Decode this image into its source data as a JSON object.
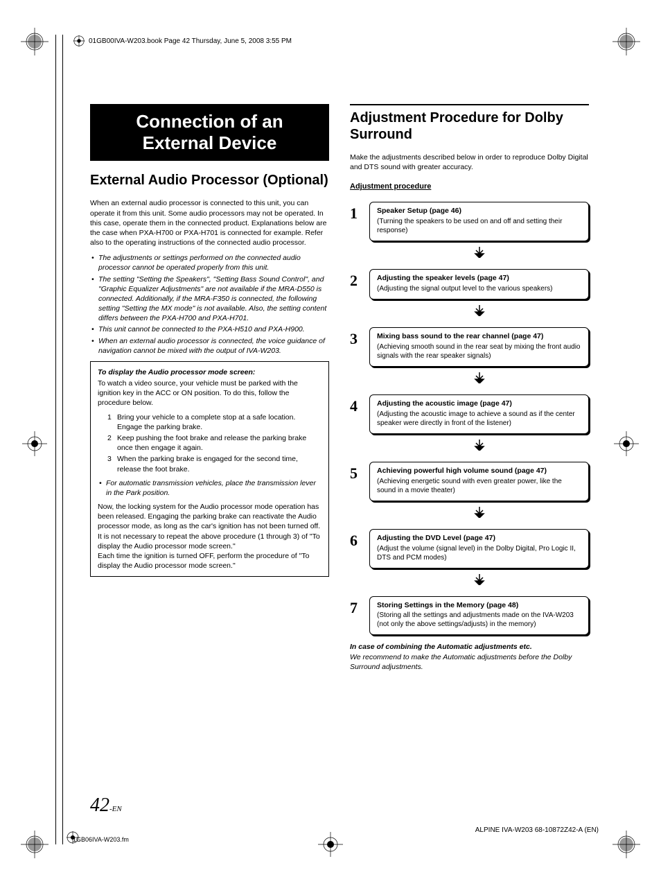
{
  "header": {
    "text": "01GB00IVA-W203.book  Page 42  Thursday, June 5, 2008  3:55 PM"
  },
  "left": {
    "banner_line1": "Connection of an",
    "banner_line2": "External Device",
    "section_title": "External Audio Processor (Optional)",
    "intro": "When an external audio processor is connected to this unit, you can operate it from this unit.  Some audio processors may not be operated. In this case, operate them in the connected product.  Explanations below are the case when PXA-H700 or PXA-H701 is connected for example. Refer also to the operating instructions of the connected audio processor.",
    "bullets": [
      "The adjustments or settings performed on the connected audio processor cannot be operated properly from this unit.",
      "The setting \"Setting the Speakers\", \"Setting Bass Sound Control\", and \"Graphic Equalizer Adjustments\" are not available if the MRA-D550 is connected. Additionally, if the MRA-F350 is connected, the following setting \"Setting the MX mode\" is not available. Also, the setting content differs between the PXA-H700 and PXA-H701.",
      "This unit cannot be connected to the PXA-H510 and PXA-H900.",
      "When an external audio processor is connected, the voice guidance of navigation cannot be mixed with the output of IVA-W203."
    ],
    "proc": {
      "heading": "To display the Audio processor mode screen:",
      "lead": "To watch a video source, your vehicle must be parked with the ignition key in the ACC or ON position. To do this, follow the procedure below.",
      "items": [
        "Bring your vehicle to a complete stop at a safe location. Engage the parking brake.",
        "Keep pushing the foot brake and release the parking brake once then engage it again.",
        "When the parking brake is engaged for the second time, release the foot brake."
      ],
      "sub_bullet": "For automatic transmission vehicles, place the transmission lever in the Park position.",
      "body2": "Now, the locking system for the Audio processor mode operation has been released. Engaging the parking brake can reactivate the Audio processor mode, as long as the car's ignition has not been turned off.  It is not necessary to repeat the above procedure (1 through 3) of \"To display the Audio processor mode screen.\"",
      "body3": "Each time the ignition is turned OFF, perform the procedure of \"To display the Audio processor mode screen.\""
    }
  },
  "right": {
    "section_title": "Adjustment Procedure for Dolby Surround",
    "intro": "Make the adjustments described below in order to reproduce Dolby Digital and DTS sound with greater accuracy.",
    "sub_heading": "Adjustment procedure",
    "steps": [
      {
        "n": "1",
        "title": "Speaker Setup (page 46)",
        "desc": "(Turning the speakers to be used on and off and setting their response)"
      },
      {
        "n": "2",
        "title": "Adjusting the speaker levels (page 47)",
        "desc": "(Adjusting the signal output level to the various speakers)"
      },
      {
        "n": "3",
        "title": "Mixing bass sound to the rear channel (page 47)",
        "desc": "(Achieving smooth sound in the rear seat by mixing the front audio signals with the rear speaker signals)"
      },
      {
        "n": "4",
        "title": "Adjusting the acoustic image (page 47)",
        "desc": "(Adjusting the acoustic image to achieve a sound as if the center speaker were directly in front of the listener)"
      },
      {
        "n": "5",
        "title": "Achieving powerful high volume sound (page 47)",
        "desc": "(Achieving energetic sound with even greater power, like the sound in a movie theater)"
      },
      {
        "n": "6",
        "title": "Adjusting the DVD Level (page 47)",
        "desc": "(Adjust the volume (signal level) in the Dolby Digital, Pro Logic II, DTS and PCM modes)"
      },
      {
        "n": "7",
        "title": "Storing Settings in the Memory (page 48)",
        "desc": "(Storing all the settings and adjustments made on the IVA-W203 (not only the above settings/adjusts) in the memory)"
      }
    ],
    "note_title": "In case of combining the Automatic adjustments etc.",
    "note_body": "We recommend to make the Automatic adjustments before the Dolby Surround adjustments."
  },
  "footer": {
    "page_num": "42",
    "page_suffix": "-EN",
    "file": "1GB06IVA-W203.fm",
    "right": "ALPINE IVA-W203 68-10872Z42-A (EN)"
  },
  "colors": {
    "black": "#000000",
    "white": "#ffffff"
  }
}
